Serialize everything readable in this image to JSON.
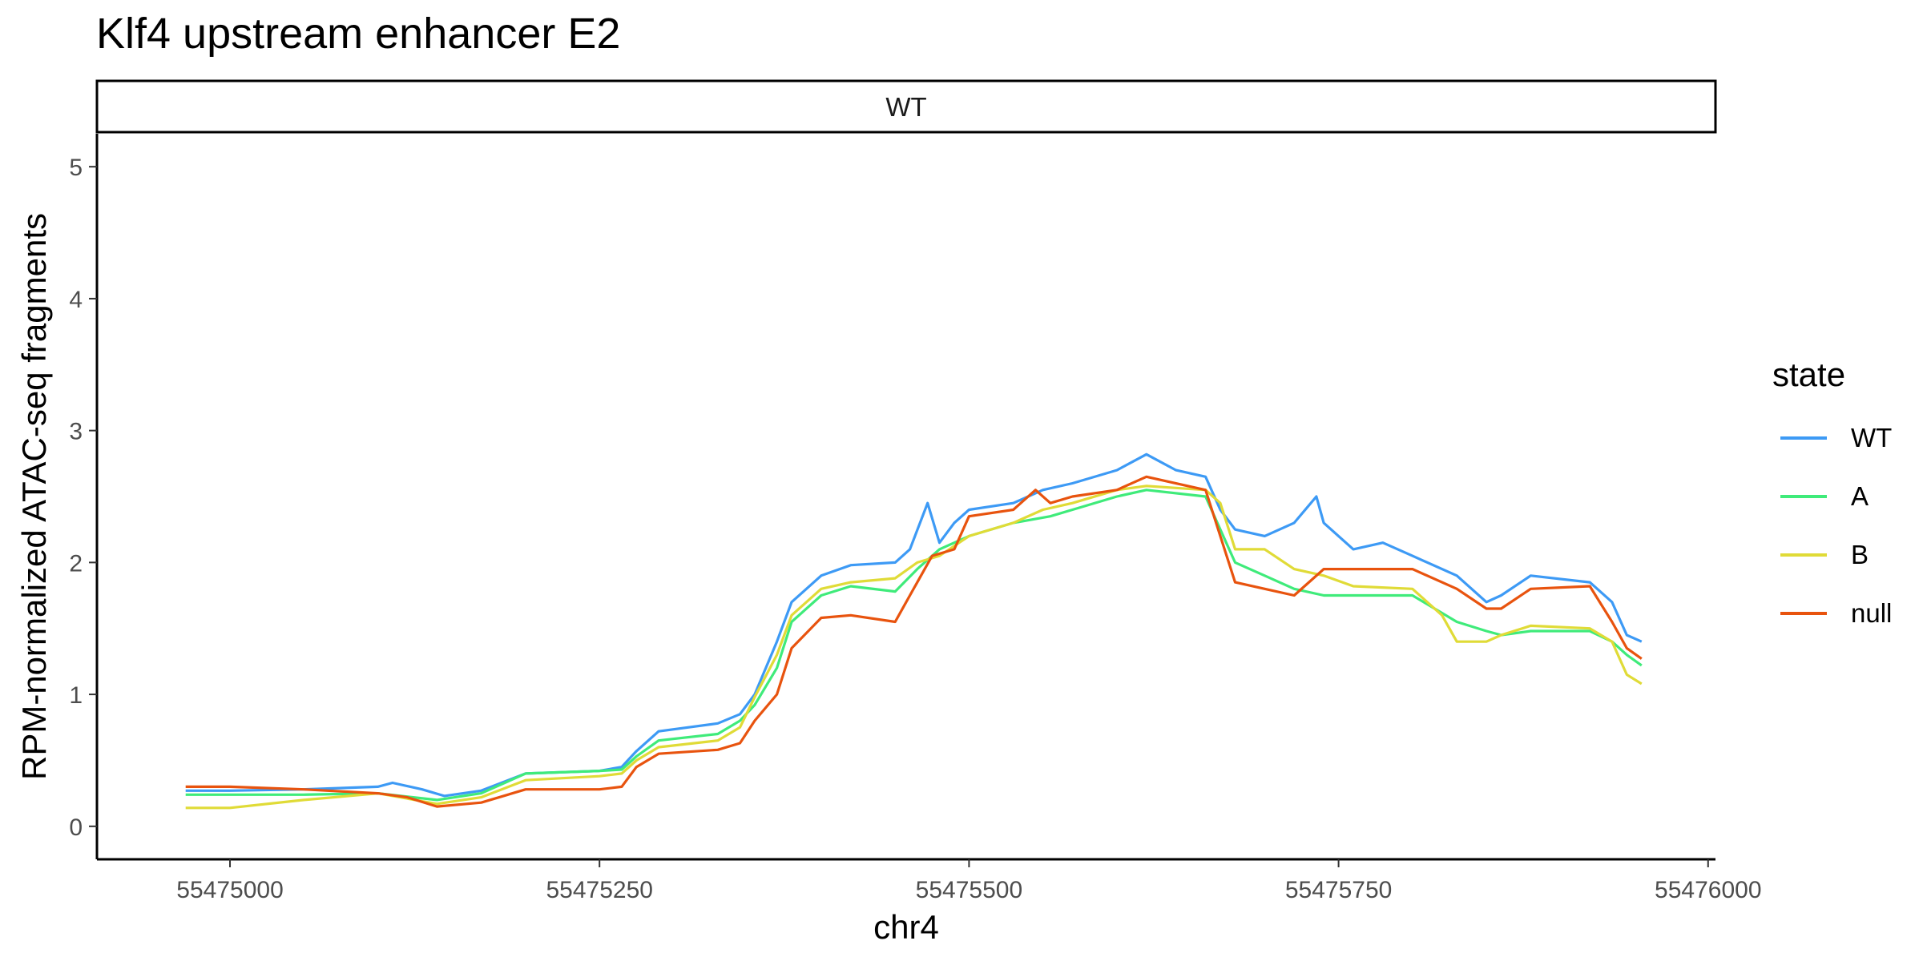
{
  "chart_data": {
    "type": "line",
    "title": "Klf4 upstream enhancer E2",
    "facet": "WT",
    "xlabel": "chr4",
    "ylabel": "RPM-normalized ATAC-seq fragments",
    "xlim": [
      55474910,
      55476005
    ],
    "ylim": [
      -0.25,
      5.25
    ],
    "x_ticks": [
      55475000,
      55475250,
      55475500,
      55475750,
      55476000
    ],
    "x_tick_labels": [
      "55475000",
      "55475250",
      "55475500",
      "55475750",
      "55476000"
    ],
    "y_ticks": [
      0,
      1,
      2,
      3,
      4,
      5
    ],
    "y_tick_labels": [
      "0",
      "1",
      "2",
      "3",
      "4",
      "5"
    ],
    "grid": false,
    "legend": {
      "title": "state",
      "position": "right"
    },
    "series": [
      {
        "name": "WT",
        "color": "#3D9AF5",
        "points": [
          [
            55474970,
            0.27
          ],
          [
            55475000,
            0.27
          ],
          [
            55475050,
            0.28
          ],
          [
            55475100,
            0.3
          ],
          [
            55475110,
            0.33
          ],
          [
            55475130,
            0.28
          ],
          [
            55475145,
            0.23
          ],
          [
            55475170,
            0.27
          ],
          [
            55475200,
            0.4
          ],
          [
            55475250,
            0.42
          ],
          [
            55475265,
            0.45
          ],
          [
            55475275,
            0.57
          ],
          [
            55475290,
            0.72
          ],
          [
            55475330,
            0.78
          ],
          [
            55475345,
            0.85
          ],
          [
            55475355,
            1.0
          ],
          [
            55475370,
            1.4
          ],
          [
            55475380,
            1.7
          ],
          [
            55475400,
            1.9
          ],
          [
            55475420,
            1.98
          ],
          [
            55475450,
            2.0
          ],
          [
            55475460,
            2.1
          ],
          [
            55475472,
            2.45
          ],
          [
            55475480,
            2.15
          ],
          [
            55475490,
            2.3
          ],
          [
            55475500,
            2.4
          ],
          [
            55475530,
            2.45
          ],
          [
            55475550,
            2.55
          ],
          [
            55475570,
            2.6
          ],
          [
            55475600,
            2.7
          ],
          [
            55475620,
            2.82
          ],
          [
            55475640,
            2.7
          ],
          [
            55475660,
            2.65
          ],
          [
            55475670,
            2.4
          ],
          [
            55475680,
            2.25
          ],
          [
            55475700,
            2.2
          ],
          [
            55475720,
            2.3
          ],
          [
            55475735,
            2.5
          ],
          [
            55475740,
            2.3
          ],
          [
            55475760,
            2.1
          ],
          [
            55475780,
            2.15
          ],
          [
            55475800,
            2.05
          ],
          [
            55475830,
            1.9
          ],
          [
            55475850,
            1.7
          ],
          [
            55475860,
            1.75
          ],
          [
            55475880,
            1.9
          ],
          [
            55475920,
            1.85
          ],
          [
            55475935,
            1.7
          ],
          [
            55475945,
            1.45
          ],
          [
            55475955,
            1.4
          ]
        ]
      },
      {
        "name": "A",
        "color": "#3FEB7A",
        "points": [
          [
            55474970,
            0.24
          ],
          [
            55475000,
            0.24
          ],
          [
            55475050,
            0.24
          ],
          [
            55475100,
            0.25
          ],
          [
            55475140,
            0.2
          ],
          [
            55475170,
            0.25
          ],
          [
            55475200,
            0.4
          ],
          [
            55475250,
            0.42
          ],
          [
            55475265,
            0.43
          ],
          [
            55475275,
            0.53
          ],
          [
            55475290,
            0.65
          ],
          [
            55475330,
            0.7
          ],
          [
            55475345,
            0.8
          ],
          [
            55475355,
            0.92
          ],
          [
            55475370,
            1.2
          ],
          [
            55475380,
            1.55
          ],
          [
            55475400,
            1.75
          ],
          [
            55475420,
            1.82
          ],
          [
            55475450,
            1.78
          ],
          [
            55475465,
            1.95
          ],
          [
            55475480,
            2.1
          ],
          [
            55475500,
            2.2
          ],
          [
            55475530,
            2.3
          ],
          [
            55475555,
            2.35
          ],
          [
            55475570,
            2.4
          ],
          [
            55475600,
            2.5
          ],
          [
            55475620,
            2.55
          ],
          [
            55475660,
            2.5
          ],
          [
            55475670,
            2.25
          ],
          [
            55475680,
            2.0
          ],
          [
            55475700,
            1.9
          ],
          [
            55475720,
            1.8
          ],
          [
            55475740,
            1.75
          ],
          [
            55475760,
            1.75
          ],
          [
            55475800,
            1.75
          ],
          [
            55475830,
            1.55
          ],
          [
            55475850,
            1.48
          ],
          [
            55475860,
            1.45
          ],
          [
            55475880,
            1.48
          ],
          [
            55475920,
            1.48
          ],
          [
            55475935,
            1.4
          ],
          [
            55475945,
            1.3
          ],
          [
            55475955,
            1.22
          ]
        ]
      },
      {
        "name": "B",
        "color": "#E0DB37",
        "points": [
          [
            55474970,
            0.14
          ],
          [
            55475000,
            0.14
          ],
          [
            55475050,
            0.2
          ],
          [
            55475100,
            0.25
          ],
          [
            55475140,
            0.17
          ],
          [
            55475170,
            0.22
          ],
          [
            55475200,
            0.35
          ],
          [
            55475250,
            0.38
          ],
          [
            55475265,
            0.4
          ],
          [
            55475275,
            0.5
          ],
          [
            55475290,
            0.6
          ],
          [
            55475330,
            0.65
          ],
          [
            55475345,
            0.75
          ],
          [
            55475355,
            0.98
          ],
          [
            55475370,
            1.3
          ],
          [
            55475380,
            1.6
          ],
          [
            55475400,
            1.8
          ],
          [
            55475420,
            1.85
          ],
          [
            55475450,
            1.88
          ],
          [
            55475465,
            2.0
          ],
          [
            55475480,
            2.05
          ],
          [
            55475500,
            2.2
          ],
          [
            55475530,
            2.3
          ],
          [
            55475550,
            2.4
          ],
          [
            55475570,
            2.45
          ],
          [
            55475600,
            2.55
          ],
          [
            55475620,
            2.58
          ],
          [
            55475660,
            2.55
          ],
          [
            55475670,
            2.45
          ],
          [
            55475680,
            2.1
          ],
          [
            55475700,
            2.1
          ],
          [
            55475720,
            1.95
          ],
          [
            55475740,
            1.9
          ],
          [
            55475760,
            1.82
          ],
          [
            55475800,
            1.8
          ],
          [
            55475820,
            1.6
          ],
          [
            55475830,
            1.4
          ],
          [
            55475850,
            1.4
          ],
          [
            55475860,
            1.45
          ],
          [
            55475880,
            1.52
          ],
          [
            55475920,
            1.5
          ],
          [
            55475935,
            1.4
          ],
          [
            55475945,
            1.15
          ],
          [
            55475955,
            1.08
          ]
        ]
      },
      {
        "name": "null",
        "color": "#E8530E",
        "points": [
          [
            55474970,
            0.3
          ],
          [
            55475000,
            0.3
          ],
          [
            55475050,
            0.28
          ],
          [
            55475100,
            0.25
          ],
          [
            55475120,
            0.22
          ],
          [
            55475140,
            0.15
          ],
          [
            55475170,
            0.18
          ],
          [
            55475200,
            0.28
          ],
          [
            55475250,
            0.28
          ],
          [
            55475265,
            0.3
          ],
          [
            55475275,
            0.45
          ],
          [
            55475290,
            0.55
          ],
          [
            55475330,
            0.58
          ],
          [
            55475345,
            0.63
          ],
          [
            55475355,
            0.8
          ],
          [
            55475370,
            1.0
          ],
          [
            55475380,
            1.35
          ],
          [
            55475400,
            1.58
          ],
          [
            55475420,
            1.6
          ],
          [
            55475450,
            1.55
          ],
          [
            55475460,
            1.75
          ],
          [
            55475475,
            2.05
          ],
          [
            55475490,
            2.1
          ],
          [
            55475500,
            2.35
          ],
          [
            55475530,
            2.4
          ],
          [
            55475545,
            2.55
          ],
          [
            55475555,
            2.45
          ],
          [
            55475570,
            2.5
          ],
          [
            55475600,
            2.55
          ],
          [
            55475620,
            2.65
          ],
          [
            55475660,
            2.55
          ],
          [
            55475670,
            2.2
          ],
          [
            55475680,
            1.85
          ],
          [
            55475700,
            1.8
          ],
          [
            55475720,
            1.75
          ],
          [
            55475740,
            1.95
          ],
          [
            55475760,
            1.95
          ],
          [
            55475800,
            1.95
          ],
          [
            55475830,
            1.8
          ],
          [
            55475850,
            1.65
          ],
          [
            55475860,
            1.65
          ],
          [
            55475880,
            1.8
          ],
          [
            55475920,
            1.82
          ],
          [
            55475935,
            1.55
          ],
          [
            55475945,
            1.35
          ],
          [
            55475955,
            1.27
          ]
        ]
      }
    ]
  }
}
